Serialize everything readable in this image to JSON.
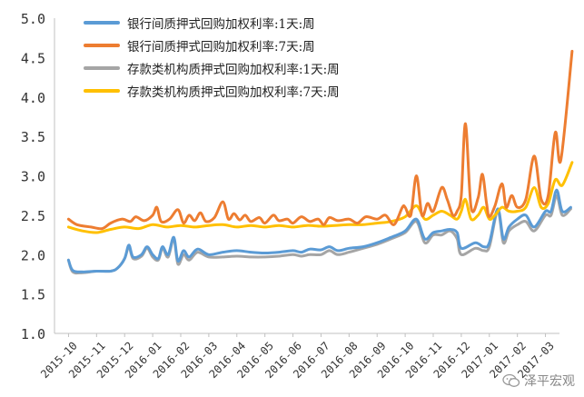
{
  "chart_data": {
    "type": "line",
    "title": "",
    "xlabel": "",
    "ylabel": "",
    "ylim": [
      1.0,
      5.0
    ],
    "yticks": [
      "1.0",
      "1.5",
      "2.0",
      "2.5",
      "3.0",
      "3.5",
      "4.0",
      "4.5",
      "5.0"
    ],
    "xticks": [
      "2015-10",
      "2015-11",
      "2015-12",
      "2016-01",
      "2016-02",
      "2016-03",
      "2016-04",
      "2016-05",
      "2016-06",
      "2016-07",
      "2016-08",
      "2016-09",
      "2016-10",
      "2016-11",
      "2016-12",
      "2017-01",
      "2017-02",
      "2017-03"
    ],
    "grid": false,
    "legend_position": "top-left",
    "series": [
      {
        "name": "银行间质押式回购加权利率:1天:周",
        "color": "#5b9bd5",
        "points": [
          [
            0,
            1.93
          ],
          [
            0.15,
            1.8
          ],
          [
            0.5,
            1.78
          ],
          [
            1.0,
            1.79
          ],
          [
            1.5,
            1.79
          ],
          [
            1.75,
            1.83
          ],
          [
            2.0,
            1.95
          ],
          [
            2.15,
            2.12
          ],
          [
            2.3,
            1.97
          ],
          [
            2.6,
            2.0
          ],
          [
            2.8,
            2.1
          ],
          [
            3.0,
            2.0
          ],
          [
            3.2,
            1.95
          ],
          [
            3.35,
            2.1
          ],
          [
            3.55,
            2.0
          ],
          [
            3.75,
            2.22
          ],
          [
            3.9,
            1.92
          ],
          [
            4.1,
            2.05
          ],
          [
            4.3,
            1.97
          ],
          [
            4.6,
            2.07
          ],
          [
            5.0,
            2.0
          ],
          [
            5.5,
            2.03
          ],
          [
            6.0,
            2.05
          ],
          [
            6.5,
            2.03
          ],
          [
            7.0,
            2.02
          ],
          [
            7.5,
            2.03
          ],
          [
            8.0,
            2.05
          ],
          [
            8.3,
            2.03
          ],
          [
            8.6,
            2.07
          ],
          [
            9.0,
            2.06
          ],
          [
            9.3,
            2.1
          ],
          [
            9.6,
            2.05
          ],
          [
            10.0,
            2.08
          ],
          [
            10.5,
            2.1
          ],
          [
            11.0,
            2.15
          ],
          [
            11.5,
            2.22
          ],
          [
            12.0,
            2.3
          ],
          [
            12.4,
            2.45
          ],
          [
            12.7,
            2.2
          ],
          [
            13.0,
            2.28
          ],
          [
            13.3,
            2.3
          ],
          [
            13.6,
            2.32
          ],
          [
            13.85,
            2.28
          ],
          [
            14.0,
            2.08
          ],
          [
            14.5,
            2.15
          ],
          [
            14.8,
            2.1
          ],
          [
            15.0,
            2.15
          ],
          [
            15.3,
            2.58
          ],
          [
            15.5,
            2.2
          ],
          [
            15.7,
            2.35
          ],
          [
            16.0,
            2.45
          ],
          [
            16.3,
            2.5
          ],
          [
            16.6,
            2.35
          ],
          [
            17.0,
            2.55
          ],
          [
            17.2,
            2.55
          ],
          [
            17.4,
            2.82
          ],
          [
            17.6,
            2.55
          ],
          [
            17.9,
            2.6
          ]
        ]
      },
      {
        "name": "银行间质押式回购加权利率:7天:周",
        "color": "#ed7d31",
        "points": [
          [
            0,
            2.45
          ],
          [
            0.3,
            2.38
          ],
          [
            0.8,
            2.35
          ],
          [
            1.2,
            2.33
          ],
          [
            1.5,
            2.4
          ],
          [
            1.9,
            2.45
          ],
          [
            2.2,
            2.42
          ],
          [
            2.4,
            2.48
          ],
          [
            2.7,
            2.43
          ],
          [
            3.0,
            2.5
          ],
          [
            3.15,
            2.6
          ],
          [
            3.3,
            2.42
          ],
          [
            3.6,
            2.45
          ],
          [
            3.9,
            2.57
          ],
          [
            4.1,
            2.4
          ],
          [
            4.3,
            2.5
          ],
          [
            4.5,
            2.43
          ],
          [
            4.7,
            2.53
          ],
          [
            4.9,
            2.42
          ],
          [
            5.2,
            2.47
          ],
          [
            5.5,
            2.67
          ],
          [
            5.7,
            2.45
          ],
          [
            5.9,
            2.52
          ],
          [
            6.1,
            2.44
          ],
          [
            6.3,
            2.5
          ],
          [
            6.5,
            2.42
          ],
          [
            6.8,
            2.47
          ],
          [
            7.0,
            2.4
          ],
          [
            7.3,
            2.5
          ],
          [
            7.5,
            2.43
          ],
          [
            7.8,
            2.45
          ],
          [
            8.0,
            2.4
          ],
          [
            8.3,
            2.48
          ],
          [
            8.6,
            2.42
          ],
          [
            8.9,
            2.45
          ],
          [
            9.1,
            2.38
          ],
          [
            9.3,
            2.47
          ],
          [
            9.6,
            2.43
          ],
          [
            10.0,
            2.45
          ],
          [
            10.3,
            2.4
          ],
          [
            10.6,
            2.48
          ],
          [
            11.0,
            2.45
          ],
          [
            11.3,
            2.5
          ],
          [
            11.6,
            2.38
          ],
          [
            11.9,
            2.6
          ],
          [
            12.0,
            2.6
          ],
          [
            12.2,
            2.5
          ],
          [
            12.4,
            3.0
          ],
          [
            12.6,
            2.5
          ],
          [
            12.8,
            2.65
          ],
          [
            13.0,
            2.55
          ],
          [
            13.3,
            2.85
          ],
          [
            13.5,
            2.7
          ],
          [
            13.7,
            2.5
          ],
          [
            13.85,
            2.55
          ],
          [
            14.0,
            2.75
          ],
          [
            14.15,
            3.66
          ],
          [
            14.35,
            2.6
          ],
          [
            14.6,
            2.72
          ],
          [
            14.75,
            3.02
          ],
          [
            14.9,
            2.65
          ],
          [
            15.0,
            2.48
          ],
          [
            15.2,
            2.62
          ],
          [
            15.45,
            2.9
          ],
          [
            15.6,
            2.6
          ],
          [
            15.8,
            2.75
          ],
          [
            16.0,
            2.6
          ],
          [
            16.3,
            2.7
          ],
          [
            16.6,
            3.25
          ],
          [
            16.85,
            2.7
          ],
          [
            17.1,
            2.75
          ],
          [
            17.35,
            3.55
          ],
          [
            17.55,
            3.2
          ],
          [
            17.95,
            4.58
          ]
        ]
      },
      {
        "name": "存款类机构质押式回购加权利率:1天:周",
        "color": "#a5a5a5",
        "points": [
          [
            0,
            1.93
          ],
          [
            0.15,
            1.78
          ],
          [
            0.5,
            1.77
          ],
          [
            1.0,
            1.79
          ],
          [
            1.5,
            1.79
          ],
          [
            1.75,
            1.83
          ],
          [
            2.0,
            1.95
          ],
          [
            2.15,
            2.1
          ],
          [
            2.3,
            1.95
          ],
          [
            2.6,
            1.98
          ],
          [
            2.8,
            2.08
          ],
          [
            3.0,
            1.97
          ],
          [
            3.2,
            1.93
          ],
          [
            3.35,
            2.08
          ],
          [
            3.55,
            1.97
          ],
          [
            3.75,
            2.2
          ],
          [
            3.9,
            1.88
          ],
          [
            4.1,
            2.0
          ],
          [
            4.3,
            1.93
          ],
          [
            4.6,
            2.03
          ],
          [
            5.0,
            1.97
          ],
          [
            5.5,
            1.97
          ],
          [
            6.0,
            1.98
          ],
          [
            6.5,
            1.97
          ],
          [
            7.0,
            1.97
          ],
          [
            7.5,
            1.98
          ],
          [
            8.0,
            2.0
          ],
          [
            8.3,
            1.98
          ],
          [
            8.6,
            2.0
          ],
          [
            9.0,
            2.0
          ],
          [
            9.3,
            2.05
          ],
          [
            9.6,
            2.0
          ],
          [
            10.0,
            2.03
          ],
          [
            10.5,
            2.08
          ],
          [
            11.0,
            2.13
          ],
          [
            11.5,
            2.2
          ],
          [
            12.0,
            2.28
          ],
          [
            12.4,
            2.42
          ],
          [
            12.7,
            2.15
          ],
          [
            13.0,
            2.25
          ],
          [
            13.3,
            2.25
          ],
          [
            13.6,
            2.3
          ],
          [
            13.85,
            2.2
          ],
          [
            14.0,
            2.0
          ],
          [
            14.5,
            2.08
          ],
          [
            14.8,
            2.05
          ],
          [
            15.0,
            2.1
          ],
          [
            15.3,
            2.55
          ],
          [
            15.5,
            2.15
          ],
          [
            15.7,
            2.3
          ],
          [
            16.0,
            2.38
          ],
          [
            16.3,
            2.42
          ],
          [
            16.6,
            2.3
          ],
          [
            17.0,
            2.5
          ],
          [
            17.2,
            2.5
          ],
          [
            17.4,
            2.75
          ],
          [
            17.6,
            2.5
          ],
          [
            17.9,
            2.58
          ]
        ]
      },
      {
        "name": "存款类机构质押式回购加权利率:7天:周",
        "color": "#ffc000",
        "points": [
          [
            0,
            2.35
          ],
          [
            0.5,
            2.3
          ],
          [
            1.0,
            2.28
          ],
          [
            1.5,
            2.32
          ],
          [
            2.0,
            2.35
          ],
          [
            2.5,
            2.33
          ],
          [
            3.0,
            2.38
          ],
          [
            3.5,
            2.35
          ],
          [
            4.0,
            2.37
          ],
          [
            4.5,
            2.35
          ],
          [
            5.0,
            2.37
          ],
          [
            5.5,
            2.38
          ],
          [
            6.0,
            2.35
          ],
          [
            6.5,
            2.37
          ],
          [
            7.0,
            2.35
          ],
          [
            7.5,
            2.37
          ],
          [
            8.0,
            2.35
          ],
          [
            8.5,
            2.37
          ],
          [
            9.0,
            2.36
          ],
          [
            9.5,
            2.37
          ],
          [
            10.0,
            2.38
          ],
          [
            10.5,
            2.38
          ],
          [
            11.0,
            2.4
          ],
          [
            11.5,
            2.42
          ],
          [
            12.0,
            2.48
          ],
          [
            12.4,
            2.62
          ],
          [
            12.7,
            2.45
          ],
          [
            13.0,
            2.5
          ],
          [
            13.3,
            2.55
          ],
          [
            13.6,
            2.5
          ],
          [
            13.85,
            2.45
          ],
          [
            14.0,
            2.55
          ],
          [
            14.15,
            2.7
          ],
          [
            14.35,
            2.45
          ],
          [
            14.6,
            2.5
          ],
          [
            14.8,
            2.6
          ],
          [
            15.0,
            2.45
          ],
          [
            15.2,
            2.5
          ],
          [
            15.45,
            2.6
          ],
          [
            15.7,
            2.55
          ],
          [
            16.0,
            2.55
          ],
          [
            16.3,
            2.6
          ],
          [
            16.6,
            2.85
          ],
          [
            16.85,
            2.6
          ],
          [
            17.1,
            2.65
          ],
          [
            17.35,
            2.95
          ],
          [
            17.6,
            2.88
          ],
          [
            17.95,
            3.17
          ]
        ]
      }
    ]
  },
  "watermark": {
    "label": "泽平宏观",
    "icon": "wechat-icon"
  }
}
